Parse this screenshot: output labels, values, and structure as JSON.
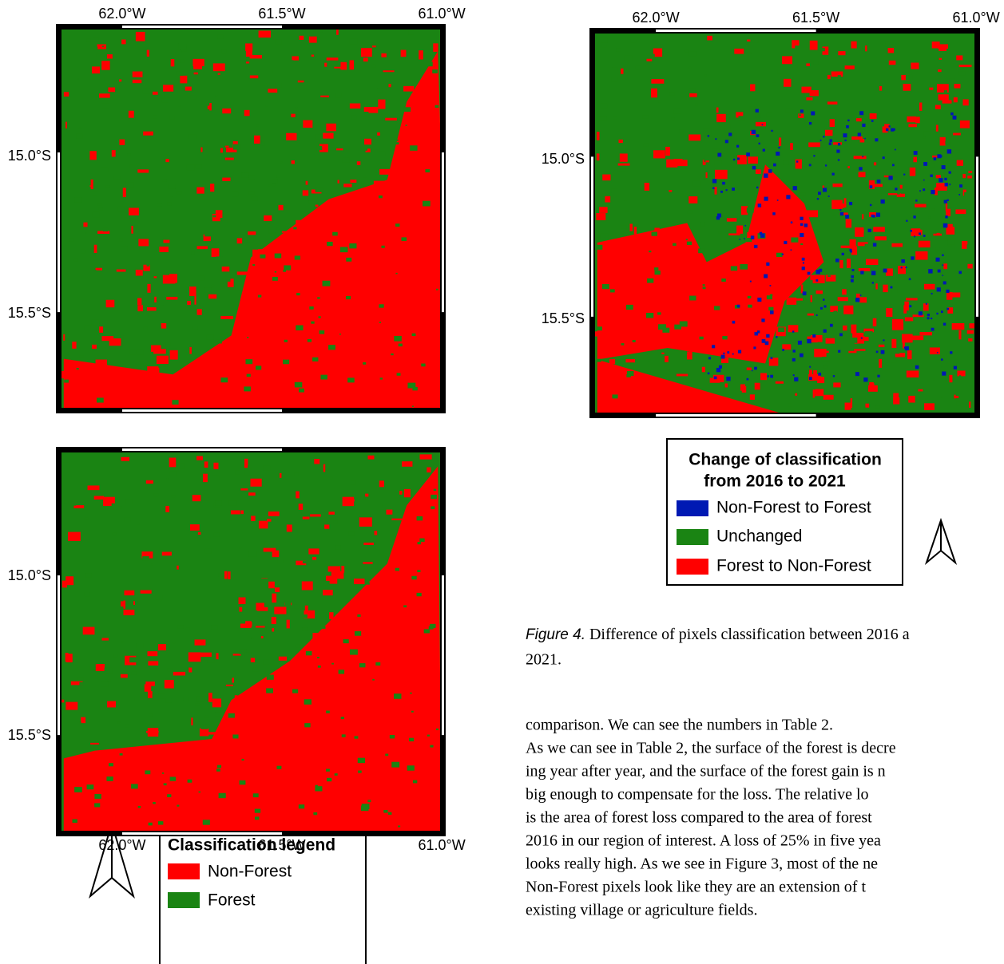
{
  "map_top_left": {
    "x_ticks": [
      "62.0°W",
      "61.5°W",
      "61.0°W"
    ],
    "y_ticks": [
      "15.0°S",
      "15.5°S"
    ]
  },
  "map_bottom_left": {
    "x_ticks": [
      "62.0°W",
      "61.5°W",
      "61.0°W"
    ],
    "y_ticks": [
      "15.0°S",
      "15.5°S"
    ]
  },
  "map_right": {
    "x_ticks": [
      "62.0°W",
      "61.5°W",
      "61.0°W"
    ],
    "y_ticks": [
      "15.0°S",
      "15.5°S"
    ]
  },
  "legend_left": {
    "title": "Classification legend",
    "items": [
      "Non-Forest",
      "Forest"
    ]
  },
  "legend_right": {
    "title": [
      "Change of classification",
      "from 2016 to 2021"
    ],
    "items": [
      "Non-Forest to Forest",
      "Unchanged",
      "Forest to Non-Forest"
    ]
  },
  "caption": {
    "label": "Figure 4.",
    "lines": [
      "Difference of pixels classification between 2016 a",
      "2021."
    ]
  },
  "paragraph": [
    "comparison. We can see the numbers in Table 2.",
    "As we can see in Table 2, the surface of the forest is decre",
    "ing year after year, and the surface of the forest gain is n",
    "big enough to compensate for the loss.  The relative lo",
    "is the area of forest loss compared to the area of forest",
    "2016 in our region of interest. A loss of 25% in five yea",
    "looks really high.  As we see in Figure 3, most of the ne",
    "Non-Forest pixels look like they are an extension of t",
    "existing village or agriculture fields."
  ]
}
